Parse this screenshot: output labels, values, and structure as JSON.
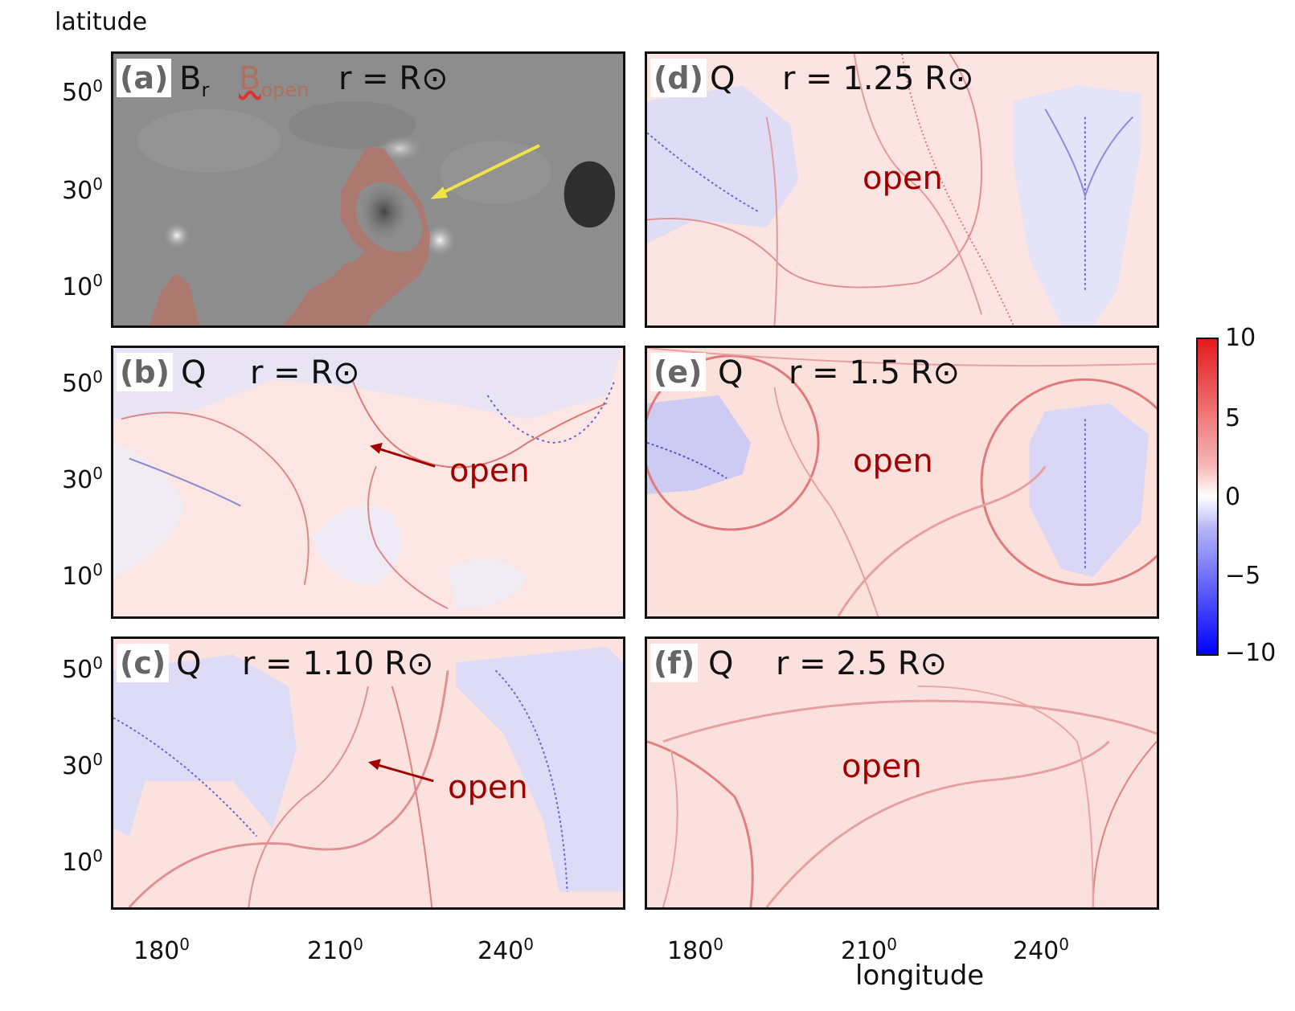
{
  "figure": {
    "y_axis_label": "latitude",
    "x_axis_label": "longitude",
    "lat_ticks": [
      "50",
      "30",
      "10"
    ],
    "lon_ticks": [
      "180",
      "210",
      "240"
    ],
    "degree_sup": "0",
    "colorbar": {
      "ticks": [
        "10",
        "5",
        "0",
        "−5",
        "−10"
      ],
      "colors": {
        "max": "#e41a1c",
        "mid": "#ffffff",
        "min": "#0000ff"
      }
    },
    "panels": [
      {
        "tag": "(a)",
        "quantity": "B",
        "quantity_sub": "r",
        "extra": "B",
        "extra_sub": "open",
        "radius": "r = R⊙"
      },
      {
        "tag": "(b)",
        "quantity": "Q",
        "radius": "r = R⊙",
        "label": "open"
      },
      {
        "tag": "(c)",
        "quantity": "Q",
        "radius": "r = 1.10 R⊙",
        "label": "open"
      },
      {
        "tag": "(d)",
        "quantity": "Q",
        "radius": "r = 1.25 R⊙",
        "label": "open"
      },
      {
        "tag": "(e)",
        "quantity": "Q",
        "radius": "r = 1.5 R⊙",
        "label": "open"
      },
      {
        "tag": "(f)",
        "quantity": "Q",
        "radius": "r = 2.5 R⊙",
        "label": "open"
      }
    ]
  }
}
